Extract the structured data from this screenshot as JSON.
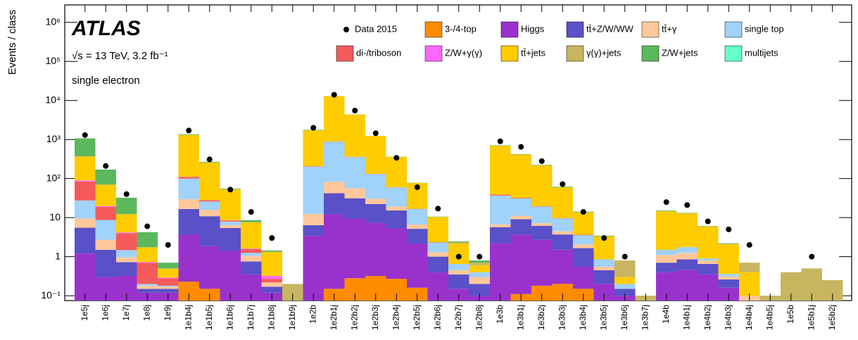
{
  "chart_data": {
    "type": "bar",
    "stacked": true,
    "log_scale": true,
    "title": "ATLAS",
    "subtitle": "√s = 13 TeV, 3.2 fb⁻¹",
    "annotation": "single electron",
    "y_label": "Events / class",
    "legend_position": "top",
    "categories": [
      "1e5j",
      "1e6j",
      "1e7j",
      "1e8j",
      "1e9j",
      "1e1b4j",
      "1e1b5j",
      "1e1b6j",
      "1e1b7j",
      "1e1b8j",
      "1e1b9j",
      "1e2b",
      "1e2b1j",
      "1e2b2j",
      "1e2b3j",
      "1e2b4j",
      "1e2b5j",
      "1e2b6j",
      "1e2b7j",
      "1e2b8j",
      "1e3b",
      "1e3b1j",
      "1e3b2j",
      "1e3b3j",
      "1e3b4j",
      "1e3b5j",
      "1e3b6j",
      "1e3b7j",
      "1e4b",
      "1e4b1j",
      "1e4b2j",
      "1e4b3j",
      "1e4b4j",
      "1e4b5j",
      "1e5b",
      "1e5b1j",
      "1e5b2j"
    ],
    "data": {
      "name": "Data 2015",
      "color": "#000000",
      "values": [
        1300,
        210,
        40,
        6,
        2,
        1700,
        310,
        52,
        14,
        3,
        null,
        2000,
        14000,
        5500,
        1450,
        340,
        60,
        17,
        1,
        1,
        900,
        650,
        280,
        72,
        14,
        3,
        1,
        null,
        25,
        21,
        8,
        5,
        2,
        null,
        null,
        1,
        null
      ]
    },
    "series": [
      {
        "name": "3-/4-top",
        "color": "#ff8c00",
        "values": [
          0,
          0,
          0,
          0,
          0,
          0.23,
          0.15,
          0,
          0,
          0,
          0,
          0,
          0.15,
          0.28,
          0.32,
          0.27,
          0.16,
          0,
          0,
          0,
          0,
          0.11,
          0.18,
          0.2,
          0.15,
          0,
          0,
          0,
          0,
          0,
          0,
          0,
          0,
          0,
          0,
          0,
          0
        ]
      },
      {
        "name": "Higgs",
        "color": "#9932cc",
        "values": [
          1.2,
          0.3,
          0.32,
          0.12,
          0.12,
          3.4,
          1.7,
          1.4,
          0.35,
          0.12,
          0,
          3.4,
          12,
          9,
          7,
          5,
          2,
          0.4,
          0.15,
          0.1,
          2.2,
          3.5,
          2.5,
          1.3,
          0.4,
          0.2,
          0.1,
          0,
          0.4,
          0.45,
          0.35,
          0.16,
          0,
          0,
          0,
          0,
          0
        ]
      },
      {
        "name": "tt̄+Z/W/WW",
        "color": "#5a50c8",
        "values": [
          4.3,
          1.2,
          0.4,
          0.03,
          0.03,
          13,
          9,
          4,
          0.4,
          0.05,
          0,
          3,
          30,
          22,
          15,
          10,
          3,
          0.6,
          0.2,
          0.1,
          3.5,
          5.5,
          3.5,
          2.2,
          1.1,
          0.25,
          0.05,
          0,
          0.3,
          0.4,
          0.3,
          0.1,
          0.05,
          0,
          0,
          0,
          0
        ]
      },
      {
        "name": "tt̄+γ",
        "color": "#ffc89a",
        "values": [
          4,
          1.2,
          0.25,
          0.03,
          0.02,
          13,
          5,
          1,
          0.3,
          0.05,
          0,
          6,
          40,
          25,
          8,
          4,
          1.5,
          0.3,
          0.1,
          0.1,
          1,
          2,
          1,
          0.8,
          0.4,
          0.1,
          0,
          0,
          0.4,
          0.4,
          0.15,
          0.05,
          0.05,
          0,
          0,
          0,
          0
        ]
      },
      {
        "name": "single top",
        "color": "#a0d2fa",
        "values": [
          18,
          6,
          0.5,
          0.02,
          0.01,
          70,
          10,
          1.5,
          0.2,
          0,
          0,
          190,
          800,
          300,
          100,
          40,
          10,
          1,
          0.2,
          0.1,
          30,
          20,
          12,
          5,
          1.5,
          0.3,
          0.05,
          0,
          0.4,
          0.5,
          0.1,
          0.05,
          0,
          0,
          0,
          0,
          0
        ]
      },
      {
        "name": "di-/triboson",
        "color": "#f55a5a",
        "values": [
          57,
          10,
          2.5,
          0.5,
          0.1,
          10,
          2,
          0.5,
          0.3,
          0.05,
          0,
          5,
          10,
          5,
          2,
          1,
          0.2,
          0.05,
          0,
          0,
          2,
          1,
          0.5,
          0.2,
          0.1,
          0,
          0,
          0,
          0,
          0,
          0,
          0,
          0,
          0,
          0,
          0,
          0
        ]
      },
      {
        "name": "Z/W+γ(γ)",
        "color": "#ff66ff",
        "values": [
          5,
          1,
          0.2,
          0.03,
          0.01,
          1,
          0.3,
          0.1,
          0.05,
          0.05,
          0,
          0,
          0,
          0,
          0,
          0,
          0,
          0,
          0,
          0,
          0,
          0,
          0,
          0,
          0,
          0,
          0,
          0,
          0,
          0,
          0,
          0,
          0,
          0,
          0,
          0,
          0
        ]
      },
      {
        "name": "tt̄+jets",
        "color": "#ffcc00",
        "values": [
          280,
          50,
          8,
          1,
          0.2,
          1200,
          230,
          45,
          6,
          1,
          0,
          1500,
          12000,
          4000,
          1100,
          300,
          60,
          8,
          1.5,
          0.2,
          650,
          380,
          200,
          50,
          10,
          2.5,
          0.1,
          0,
          13,
          11,
          5,
          1.7,
          0.3,
          0,
          0,
          0,
          0
        ]
      },
      {
        "name": "γ(γ)+jets",
        "color": "#c8b560",
        "values": [
          2,
          0.5,
          0.1,
          0.01,
          0.01,
          1,
          0.2,
          0.1,
          0.03,
          0.02,
          0.2,
          10,
          30,
          10,
          3,
          1,
          0.3,
          0.05,
          0.2,
          0.1,
          2,
          1,
          0.5,
          0.2,
          0.1,
          0,
          0.5,
          0.1,
          0.2,
          0.2,
          0.1,
          0.1,
          0.3,
          0.1,
          0.4,
          0.5,
          0.25
        ]
      },
      {
        "name": "Z/W+jets",
        "color": "#5cb85c",
        "values": [
          700,
          100,
          20,
          2.5,
          0.2,
          50,
          10,
          2,
          1,
          0.1,
          0,
          50,
          100,
          30,
          10,
          3,
          1,
          0.2,
          0.1,
          0.1,
          20,
          10,
          5,
          2,
          0.5,
          0.1,
          0,
          0,
          0.5,
          0.3,
          0.1,
          0.05,
          0,
          0,
          0,
          0,
          0
        ]
      },
      {
        "name": "multijets",
        "color": "#66ffcc",
        "values": [
          0,
          0,
          0,
          0,
          0,
          0,
          0,
          0,
          0,
          0,
          0,
          0,
          0,
          0,
          0,
          0,
          0,
          0,
          0,
          0,
          0,
          0,
          0,
          0,
          0,
          0,
          0,
          0,
          0,
          0,
          0,
          0,
          0,
          0,
          0,
          0,
          0
        ]
      }
    ],
    "ylim": [
      0.075,
      2800000
    ],
    "yticks": [
      {
        "value": 0.1,
        "label": "10⁻¹"
      },
      1,
      10,
      {
        "value": 100,
        "label": "10²"
      },
      {
        "value": 1000,
        "label": "10³"
      },
      {
        "value": 10000,
        "label": "10⁴"
      },
      {
        "value": 100000,
        "label": "10⁵"
      },
      {
        "value": 1000000,
        "label": "10⁶"
      }
    ]
  }
}
